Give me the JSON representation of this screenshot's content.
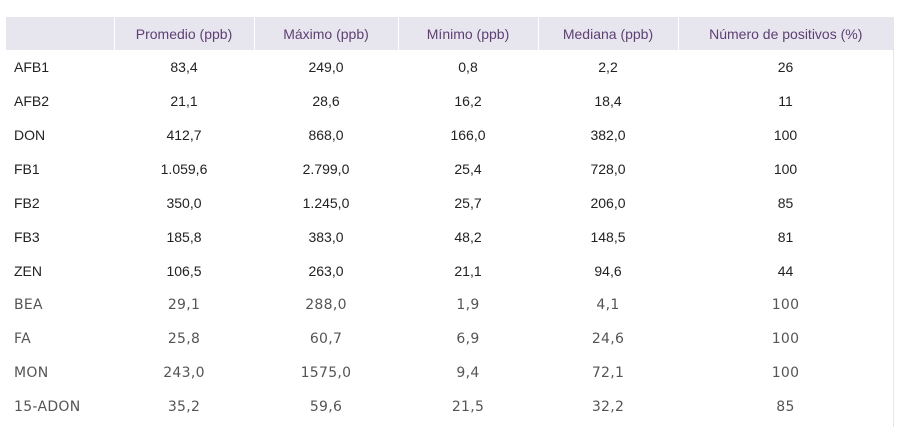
{
  "table": {
    "headers": [
      "",
      "Promedio (ppb)",
      "Máximo (ppb)",
      "Mínimo (ppb)",
      "Mediana (ppb)",
      "Número de positivos (%)"
    ],
    "rows": [
      {
        "label": "AFB1",
        "values": [
          "83,4",
          "249,0",
          "0,8",
          "2,2",
          "26"
        ]
      },
      {
        "label": "AFB2",
        "values": [
          "21,1",
          "28,6",
          "16,2",
          "18,4",
          "11"
        ]
      },
      {
        "label": "DON",
        "values": [
          "412,7",
          "868,0",
          "166,0",
          "382,0",
          "100"
        ]
      },
      {
        "label": "FB1",
        "values": [
          "1.059,6",
          "2.799,0",
          "25,4",
          "728,0",
          "100"
        ]
      },
      {
        "label": "FB2",
        "values": [
          "350,0",
          "1.245,0",
          "25,7",
          "206,0",
          "85"
        ]
      },
      {
        "label": "FB3",
        "values": [
          "185,8",
          "383,0",
          "48,2",
          "148,5",
          "81"
        ]
      },
      {
        "label": "ZEN",
        "values": [
          "106,5",
          "263,0",
          "21,1",
          "94,6",
          "44"
        ]
      },
      {
        "label": "BEA",
        "values": [
          "29,1",
          "288,0",
          "1,9",
          "4,1",
          "100"
        ]
      },
      {
        "label": "FA",
        "values": [
          "25,8",
          "60,7",
          "6,9",
          "24,6",
          "100"
        ]
      },
      {
        "label": "MON",
        "values": [
          "243,0",
          "1575,0",
          "9,4",
          "72,1",
          "100"
        ]
      },
      {
        "label": "15-ADON",
        "values": [
          "35,2",
          "59,6",
          "21,5",
          "32,2",
          "85"
        ]
      }
    ]
  },
  "colors": {
    "header_bg": "#e7e6ef",
    "header_text": "#5e3f73"
  }
}
